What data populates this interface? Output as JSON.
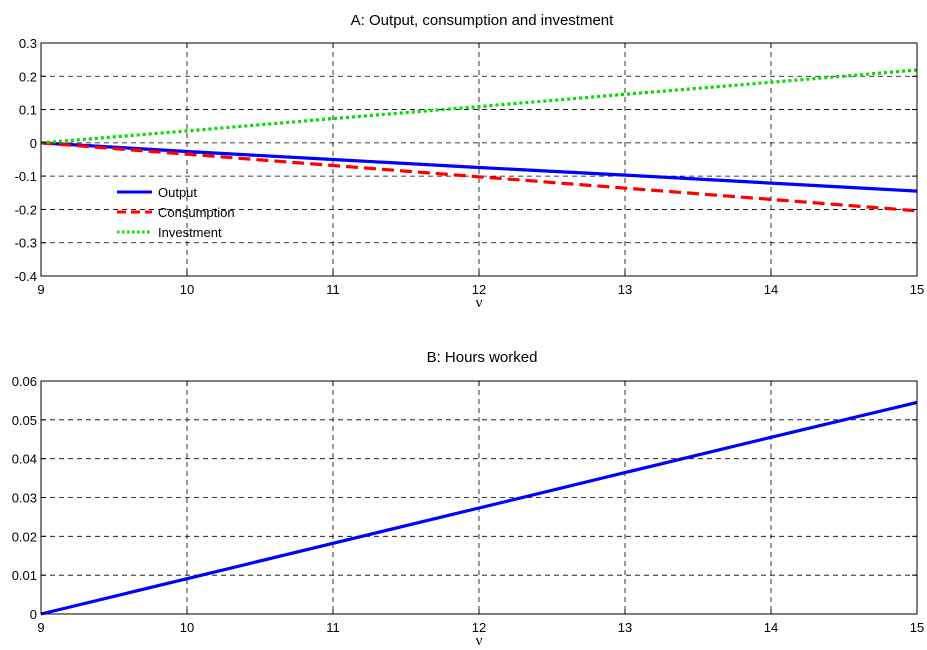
{
  "chart_data": [
    {
      "type": "line",
      "title": "A: Output, consumption and investment",
      "xlabel": "ν",
      "ylabel": "",
      "xlim": [
        9,
        15
      ],
      "ylim": [
        -0.4,
        0.3
      ],
      "xticks": [
        9,
        10,
        11,
        12,
        13,
        14,
        15
      ],
      "yticks": [
        -0.4,
        -0.3,
        -0.2,
        -0.1,
        0,
        0.1,
        0.2,
        0.3
      ],
      "ytick_labels": [
        "-0.4",
        "-0.3",
        "-0.2",
        "-0.1",
        "0",
        "0.1",
        "0.2",
        "0.3"
      ],
      "grid": true,
      "legend": {
        "placement": "left",
        "entries": [
          "Output",
          "Consumption",
          "Investment"
        ]
      },
      "x": [
        9,
        10,
        11,
        12,
        13,
        14,
        15
      ],
      "series": [
        {
          "name": "Output",
          "color": "#0000ff",
          "style": "solid",
          "values": [
            0,
            -0.026,
            -0.05,
            -0.074,
            -0.097,
            -0.121,
            -0.145
          ]
        },
        {
          "name": "Consumption",
          "color": "#ff0000",
          "style": "dashed",
          "values": [
            0,
            -0.034,
            -0.068,
            -0.102,
            -0.136,
            -0.17,
            -0.204
          ]
        },
        {
          "name": "Investment",
          "color": "#00dd00",
          "style": "dotted",
          "values": [
            0,
            0.036,
            0.073,
            0.109,
            0.146,
            0.182,
            0.219
          ]
        }
      ]
    },
    {
      "type": "line",
      "title": "B: Hours worked",
      "xlabel": "ν",
      "ylabel": "",
      "xlim": [
        9,
        15
      ],
      "ylim": [
        0,
        0.06
      ],
      "xticks": [
        9,
        10,
        11,
        12,
        13,
        14,
        15
      ],
      "yticks": [
        0,
        0.01,
        0.02,
        0.03,
        0.04,
        0.05,
        0.06
      ],
      "ytick_labels": [
        "0",
        "0.01",
        "0.02",
        "0.03",
        "0.04",
        "0.05",
        "0.06"
      ],
      "grid": true,
      "x": [
        9,
        10,
        11,
        12,
        13,
        14,
        15
      ],
      "series": [
        {
          "color": "#0000ff",
          "style": "solid",
          "values": [
            0,
            0.0091,
            0.0182,
            0.0273,
            0.0364,
            0.0455,
            0.0545
          ]
        }
      ]
    }
  ]
}
